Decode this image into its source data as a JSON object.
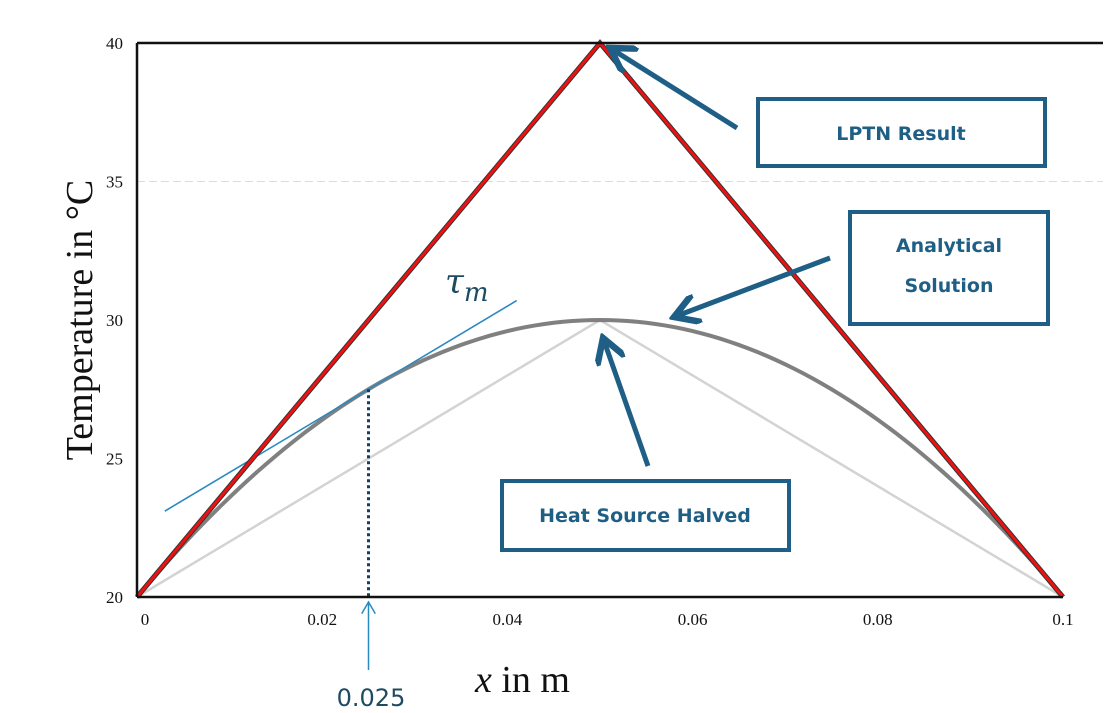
{
  "chart_data": {
    "type": "line",
    "xlabel_var": "x",
    "xlabel_rest": " in m",
    "ylabel": "Temperature  in  °C",
    "xlim": [
      0,
      0.1
    ],
    "ylim": [
      20,
      40
    ],
    "x_ticks": [
      "0",
      "0.02",
      "0.04",
      "0.06",
      "0.08",
      "0.1"
    ],
    "x_tick_values": [
      0,
      0.02,
      0.04,
      0.06,
      0.08,
      0.1
    ],
    "y_ticks": [
      "20",
      "25",
      "30",
      "35",
      "40"
    ],
    "y_tick_values": [
      20,
      25,
      30,
      35,
      40
    ],
    "grid": "horizontal dashed line at 35 only",
    "series": [
      {
        "key": "heat_source_halved",
        "x": [
          0,
          0.05,
          0.1
        ],
        "y": [
          20,
          30,
          20
        ],
        "color": "#d3d3d3"
      },
      {
        "key": "analytical",
        "function": "20 + 10*(1-((x-0.05)/0.05)^2)",
        "color": "#808080"
      },
      {
        "key": "lptn",
        "x": [
          0,
          0.05,
          0.1
        ],
        "y": [
          20,
          40,
          20
        ],
        "color": "#ee1111"
      }
    ],
    "tangent": {
      "label_base": "τ",
      "label_sub": "m",
      "x": [
        0.003,
        0.041
      ],
      "y": [
        23.1,
        30.7
      ],
      "color": "#2a8ac0"
    },
    "marker": {
      "x": 0.025,
      "y": 27.5,
      "label": "0.025",
      "color": "#2a8ac0"
    },
    "annotations": [
      {
        "key": "lptn",
        "lines": [
          "LPTN Result"
        ]
      },
      {
        "key": "analytical",
        "lines": [
          "Analytical",
          "Solution"
        ]
      },
      {
        "key": "halved",
        "lines": [
          "Heat Source Halved"
        ]
      }
    ],
    "annotation_color": "#1f5f86"
  }
}
